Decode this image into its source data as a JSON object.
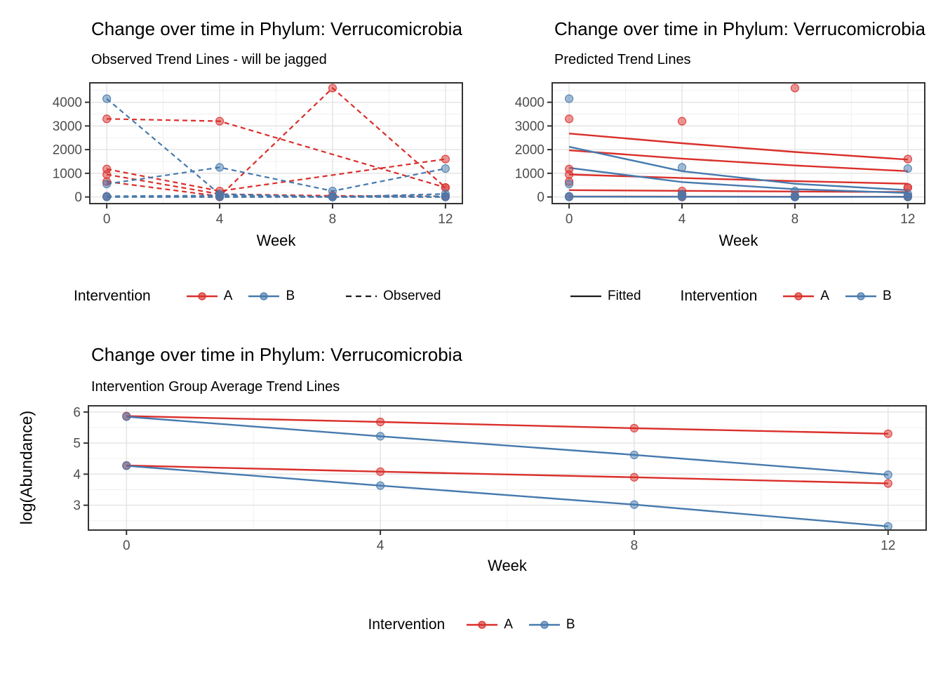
{
  "colors": {
    "A": "#DA2F2B",
    "B": "#467AAD",
    "neutral": "#1A1A1A",
    "grid_major": "#E3E3E3",
    "grid_minor": "#F0F0F0",
    "panel_border": "#333333",
    "tick_text": "#4D4D4D"
  },
  "chart_data": [
    {
      "type": "line",
      "title": "Change over time in Phylum: Verrucomicrobia",
      "subtitle": "Observed Trend Lines - will be jagged",
      "xlabel": "Week",
      "x": [
        0,
        4,
        8,
        12
      ],
      "xlim": [
        -0.6,
        12.6
      ],
      "ylim": [
        -280,
        4820
      ],
      "xticks": [
        0,
        4,
        8,
        12
      ],
      "xtick_labels": [
        "0",
        "4",
        "8",
        "12"
      ],
      "xminor": [
        2,
        6,
        10
      ],
      "yticks": [
        0,
        1000,
        2000,
        3000,
        4000
      ],
      "ytick_labels": [
        "0",
        "1000",
        "2000",
        "3000",
        "4000"
      ],
      "yminor": [
        500,
        1500,
        2500,
        3500,
        4500
      ],
      "grid": true,
      "legend_position": "bottom",
      "line_width": 2.2,
      "point_radius": 5.5,
      "series": [
        {
          "name": "A-subject-1",
          "group": "A",
          "line": true,
          "dash": true,
          "points": true,
          "values": [
            3300,
            3200,
            null,
            400
          ]
        },
        {
          "name": "A-subject-2",
          "group": "A",
          "line": true,
          "dash": true,
          "points": true,
          "values": [
            1180,
            250,
            null,
            1600
          ]
        },
        {
          "name": "A-subject-3",
          "group": "A",
          "line": true,
          "dash": true,
          "points": true,
          "values": [
            950,
            120,
            50,
            30
          ]
        },
        {
          "name": "A-subject-4",
          "group": "A",
          "line": true,
          "dash": true,
          "points": true,
          "values": [
            650,
            30,
            4600,
            400
          ]
        },
        {
          "name": "A-subject-5",
          "group": "A",
          "line": true,
          "dash": true,
          "points": true,
          "values": [
            20,
            0,
            10,
            0
          ]
        },
        {
          "name": "B-subject-1",
          "group": "B",
          "line": true,
          "dash": true,
          "points": true,
          "values": [
            4150,
            120,
            0,
            30
          ]
        },
        {
          "name": "B-subject-2",
          "group": "B",
          "line": true,
          "dash": true,
          "points": true,
          "values": [
            550,
            1250,
            250,
            1200
          ]
        },
        {
          "name": "B-subject-3",
          "group": "B",
          "line": true,
          "dash": true,
          "points": true,
          "values": [
            30,
            60,
            0,
            130
          ]
        },
        {
          "name": "B-subject-4",
          "group": "B",
          "line": true,
          "dash": true,
          "points": true,
          "values": [
            0,
            0,
            0,
            0
          ]
        }
      ],
      "legend": {
        "title": "Intervention",
        "items": [
          {
            "label": "A",
            "color": "A"
          },
          {
            "label": "B",
            "color": "B"
          }
        ],
        "linetype": {
          "label": "Observed",
          "style": "dashed"
        }
      }
    },
    {
      "type": "line",
      "title": "Change over time in Phylum: Verrucomicrobia",
      "subtitle": "Predicted Trend Lines",
      "xlabel": "Week",
      "x": [
        0,
        4,
        8,
        12
      ],
      "xlim": [
        -0.6,
        12.6
      ],
      "ylim": [
        -280,
        4820
      ],
      "xticks": [
        0,
        4,
        8,
        12
      ],
      "xtick_labels": [
        "0",
        "4",
        "8",
        "12"
      ],
      "xminor": [
        2,
        6,
        10
      ],
      "yticks": [
        0,
        1000,
        2000,
        3000,
        4000
      ],
      "ytick_labels": [
        "0",
        "1000",
        "2000",
        "3000",
        "4000"
      ],
      "yminor": [
        500,
        1500,
        2500,
        3500,
        4500
      ],
      "grid": true,
      "legend_position": "bottom",
      "line_width": 2.4,
      "point_radius": 5.5,
      "series": [
        {
          "name": "A-observed-points-1",
          "group": "A",
          "line": false,
          "dash": false,
          "points": true,
          "values": [
            3300,
            3200,
            null,
            400
          ]
        },
        {
          "name": "A-observed-points-2",
          "group": "A",
          "line": false,
          "dash": false,
          "points": true,
          "values": [
            1180,
            250,
            null,
            1600
          ]
        },
        {
          "name": "A-observed-points-3",
          "group": "A",
          "line": false,
          "dash": false,
          "points": true,
          "values": [
            950,
            120,
            50,
            30
          ]
        },
        {
          "name": "A-observed-points-4",
          "group": "A",
          "line": false,
          "dash": false,
          "points": true,
          "values": [
            650,
            30,
            4600,
            400
          ]
        },
        {
          "name": "A-observed-points-5",
          "group": "A",
          "line": false,
          "dash": false,
          "points": true,
          "values": [
            20,
            0,
            10,
            0
          ]
        },
        {
          "name": "B-observed-points-1",
          "group": "B",
          "line": false,
          "dash": false,
          "points": true,
          "values": [
            4150,
            120,
            0,
            30
          ]
        },
        {
          "name": "B-observed-points-2",
          "group": "B",
          "line": false,
          "dash": false,
          "points": true,
          "values": [
            550,
            1250,
            250,
            1200
          ]
        },
        {
          "name": "B-observed-points-3",
          "group": "B",
          "line": false,
          "dash": false,
          "points": true,
          "values": [
            30,
            60,
            0,
            130
          ]
        },
        {
          "name": "B-observed-points-4",
          "group": "B",
          "line": false,
          "dash": false,
          "points": true,
          "values": [
            0,
            0,
            0,
            0
          ]
        },
        {
          "name": "A-fitted-1",
          "group": "A",
          "line": true,
          "dash": false,
          "points": false,
          "values": [
            2680,
            2270,
            1900,
            1580
          ]
        },
        {
          "name": "A-fitted-2",
          "group": "A",
          "line": true,
          "dash": false,
          "points": false,
          "values": [
            1970,
            1620,
            1330,
            1090
          ]
        },
        {
          "name": "A-fitted-3",
          "group": "A",
          "line": true,
          "dash": false,
          "points": false,
          "values": [
            950,
            800,
            670,
            560
          ]
        },
        {
          "name": "A-fitted-4",
          "group": "A",
          "line": true,
          "dash": false,
          "points": false,
          "values": [
            290,
            260,
            230,
            205
          ]
        },
        {
          "name": "A-fitted-5",
          "group": "A",
          "line": true,
          "dash": false,
          "points": false,
          "values": [
            20,
            15,
            12,
            10
          ]
        },
        {
          "name": "B-fitted-1",
          "group": "B",
          "line": true,
          "dash": false,
          "points": false,
          "values": [
            2120,
            1090,
            560,
            290
          ]
        },
        {
          "name": "B-fitted-2",
          "group": "B",
          "line": true,
          "dash": false,
          "points": false,
          "values": [
            1230,
            630,
            330,
            170
          ]
        },
        {
          "name": "B-fitted-3",
          "group": "B",
          "line": true,
          "dash": false,
          "points": false,
          "values": [
            15,
            8,
            5,
            3
          ]
        }
      ],
      "legend": {
        "title": "Intervention",
        "items": [
          {
            "label": "A",
            "color": "A"
          },
          {
            "label": "B",
            "color": "B"
          }
        ],
        "linetype": {
          "label": "Fitted",
          "style": "solid"
        }
      }
    },
    {
      "type": "line",
      "title": "Change over time in Phylum: Verrucomicrobia",
      "subtitle": "Intervention Group Average Trend Lines",
      "xlabel": "Week",
      "ylabel": "log(Abundance)",
      "x": [
        0,
        4,
        8,
        12
      ],
      "xlim": [
        -0.6,
        12.6
      ],
      "ylim": [
        2.2,
        6.2
      ],
      "xticks": [
        0,
        4,
        8,
        12
      ],
      "xtick_labels": [
        "0",
        "4",
        "8",
        "12"
      ],
      "xminor": [
        2,
        6,
        10
      ],
      "yticks": [
        3,
        4,
        5,
        6
      ],
      "ytick_labels": [
        "3",
        "4",
        "5",
        "6"
      ],
      "yminor": [
        2.5,
        3.5,
        4.5,
        5.5
      ],
      "grid": true,
      "legend_position": "bottom",
      "line_width": 2.4,
      "point_radius": 5.5,
      "series": [
        {
          "name": "A-average-upper",
          "group": "A",
          "line": true,
          "dash": false,
          "points": true,
          "values": [
            5.87,
            5.68,
            5.48,
            5.3
          ]
        },
        {
          "name": "B-average-upper",
          "group": "B",
          "line": true,
          "dash": false,
          "points": true,
          "values": [
            5.85,
            5.22,
            4.62,
            3.98
          ]
        },
        {
          "name": "A-average-lower",
          "group": "A",
          "line": true,
          "dash": false,
          "points": true,
          "values": [
            4.28,
            4.08,
            3.9,
            3.7
          ]
        },
        {
          "name": "B-average-lower",
          "group": "B",
          "line": true,
          "dash": false,
          "points": true,
          "values": [
            4.27,
            3.63,
            3.02,
            2.32
          ]
        }
      ],
      "legend": {
        "title": "Intervention",
        "items": [
          {
            "label": "A",
            "color": "A"
          },
          {
            "label": "B",
            "color": "B"
          }
        ]
      }
    }
  ]
}
